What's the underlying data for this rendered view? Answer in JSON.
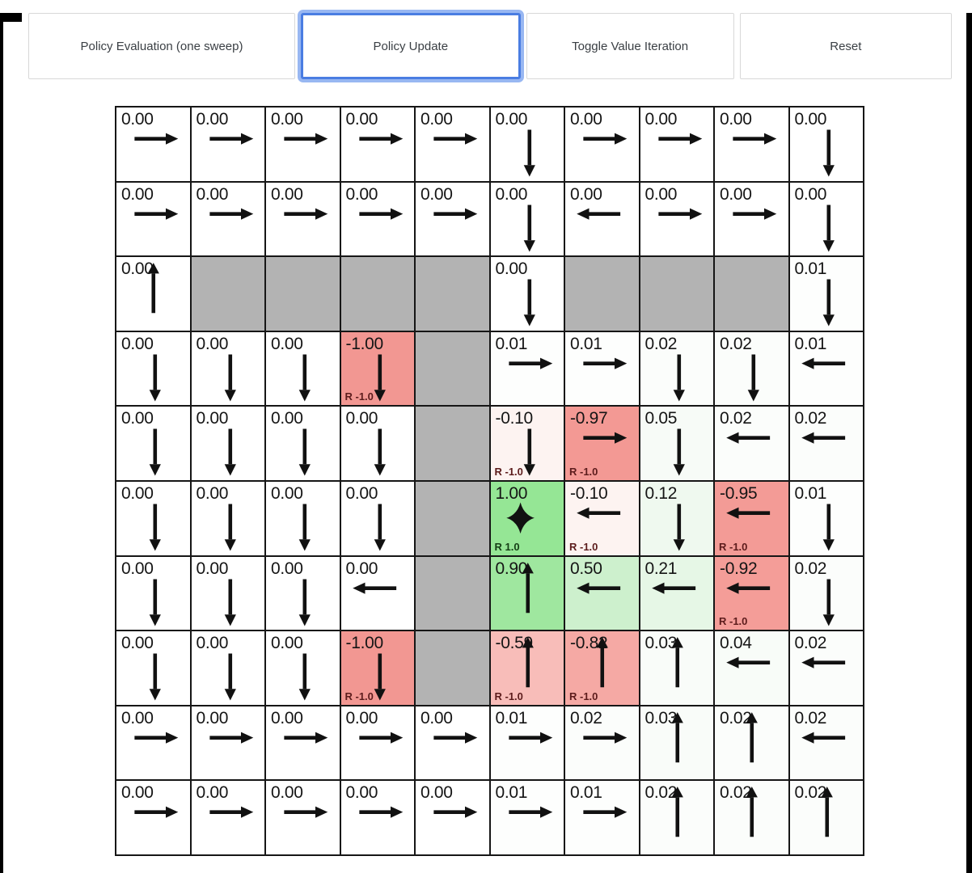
{
  "toolbar": {
    "buttons": [
      {
        "label": "Policy Evaluation (one sweep)",
        "active": false
      },
      {
        "label": "Policy Update",
        "active": true
      },
      {
        "label": "Toggle Value Iteration",
        "active": false
      },
      {
        "label": "Reset",
        "active": false
      }
    ],
    "active_border_color": "#4a7de2",
    "active_glow_color": "#98b7f2"
  },
  "colors": {
    "wall": "#b3b3b3",
    "goal_green": "#95e695",
    "penalty_red": "#f29792",
    "grid_line": "#161616"
  },
  "grid": {
    "rows_count": 10,
    "cols_count": 10,
    "rows": [
      [
        {
          "v": "0.00",
          "a": "right",
          "bg": "#ffffff"
        },
        {
          "v": "0.00",
          "a": "right",
          "bg": "#ffffff"
        },
        {
          "v": "0.00",
          "a": "right",
          "bg": "#ffffff"
        },
        {
          "v": "0.00",
          "a": "right",
          "bg": "#ffffff"
        },
        {
          "v": "0.00",
          "a": "right",
          "bg": "#ffffff"
        },
        {
          "v": "0.00",
          "a": "down",
          "bg": "#ffffff"
        },
        {
          "v": "0.00",
          "a": "right",
          "bg": "#ffffff"
        },
        {
          "v": "0.00",
          "a": "right",
          "bg": "#ffffff"
        },
        {
          "v": "0.00",
          "a": "right",
          "bg": "#ffffff"
        },
        {
          "v": "0.00",
          "a": "down",
          "bg": "#ffffff"
        }
      ],
      [
        {
          "v": "0.00",
          "a": "right",
          "bg": "#ffffff"
        },
        {
          "v": "0.00",
          "a": "right",
          "bg": "#ffffff"
        },
        {
          "v": "0.00",
          "a": "right",
          "bg": "#ffffff"
        },
        {
          "v": "0.00",
          "a": "right",
          "bg": "#ffffff"
        },
        {
          "v": "0.00",
          "a": "right",
          "bg": "#ffffff"
        },
        {
          "v": "0.00",
          "a": "down",
          "bg": "#ffffff"
        },
        {
          "v": "0.00",
          "a": "left",
          "bg": "#ffffff"
        },
        {
          "v": "0.00",
          "a": "right",
          "bg": "#ffffff"
        },
        {
          "v": "0.00",
          "a": "right",
          "bg": "#ffffff"
        },
        {
          "v": "0.00",
          "a": "down",
          "bg": "#ffffff"
        }
      ],
      [
        {
          "v": "0.00",
          "a": "up",
          "bg": "#ffffff"
        },
        {
          "wall": true,
          "bg": "#b3b3b3"
        },
        {
          "wall": true,
          "bg": "#b3b3b3"
        },
        {
          "wall": true,
          "bg": "#b3b3b3"
        },
        {
          "wall": true,
          "bg": "#b3b3b3"
        },
        {
          "v": "0.00",
          "a": "down",
          "bg": "#ffffff"
        },
        {
          "wall": true,
          "bg": "#b3b3b3"
        },
        {
          "wall": true,
          "bg": "#b3b3b3"
        },
        {
          "wall": true,
          "bg": "#b3b3b3"
        },
        {
          "v": "0.01",
          "a": "down",
          "bg": "#fdfefd"
        }
      ],
      [
        {
          "v": "0.00",
          "a": "down",
          "bg": "#ffffff"
        },
        {
          "v": "0.00",
          "a": "down",
          "bg": "#ffffff"
        },
        {
          "v": "0.00",
          "a": "down",
          "bg": "#ffffff"
        },
        {
          "v": "-1.00",
          "a": "down",
          "bg": "#f29792",
          "r": "R -1.0"
        },
        {
          "wall": true,
          "bg": "#b3b3b3"
        },
        {
          "v": "0.01",
          "a": "right",
          "bg": "#fdfefd"
        },
        {
          "v": "0.01",
          "a": "right",
          "bg": "#fdfefd"
        },
        {
          "v": "0.02",
          "a": "down",
          "bg": "#fbfdfb"
        },
        {
          "v": "0.02",
          "a": "down",
          "bg": "#fbfdfb"
        },
        {
          "v": "0.01",
          "a": "left",
          "bg": "#fdfefd"
        }
      ],
      [
        {
          "v": "0.00",
          "a": "down",
          "bg": "#ffffff"
        },
        {
          "v": "0.00",
          "a": "down",
          "bg": "#ffffff"
        },
        {
          "v": "0.00",
          "a": "down",
          "bg": "#ffffff"
        },
        {
          "v": "0.00",
          "a": "down",
          "bg": "#ffffff"
        },
        {
          "wall": true,
          "bg": "#b3b3b3"
        },
        {
          "v": "-0.10",
          "a": "down",
          "bg": "#fdf3f1",
          "r": "R -1.0"
        },
        {
          "v": "-0.97",
          "a": "right",
          "bg": "#f39994",
          "r": "R -1.0"
        },
        {
          "v": "0.05",
          "a": "down",
          "bg": "#f7fbf7"
        },
        {
          "v": "0.02",
          "a": "left",
          "bg": "#fbfdfb"
        },
        {
          "v": "0.02",
          "a": "left",
          "bg": "#fbfdfb"
        }
      ],
      [
        {
          "v": "0.00",
          "a": "down",
          "bg": "#ffffff"
        },
        {
          "v": "0.00",
          "a": "down",
          "bg": "#ffffff"
        },
        {
          "v": "0.00",
          "a": "down",
          "bg": "#ffffff"
        },
        {
          "v": "0.00",
          "a": "down",
          "bg": "#ffffff"
        },
        {
          "wall": true,
          "bg": "#b3b3b3"
        },
        {
          "v": "1.00",
          "a": "star",
          "bg": "#95e695",
          "r": "R 1.0"
        },
        {
          "v": "-0.10",
          "a": "left",
          "bg": "#fdf3f1",
          "r": "R -1.0"
        },
        {
          "v": "0.12",
          "a": "down",
          "bg": "#eff9ef"
        },
        {
          "v": "-0.95",
          "a": "left",
          "bg": "#f39b96",
          "r": "R -1.0"
        },
        {
          "v": "0.01",
          "a": "down",
          "bg": "#fdfefd"
        }
      ],
      [
        {
          "v": "0.00",
          "a": "down",
          "bg": "#ffffff"
        },
        {
          "v": "0.00",
          "a": "down",
          "bg": "#ffffff"
        },
        {
          "v": "0.00",
          "a": "down",
          "bg": "#ffffff"
        },
        {
          "v": "0.00",
          "a": "left",
          "bg": "#ffffff"
        },
        {
          "wall": true,
          "bg": "#b3b3b3"
        },
        {
          "v": "0.90",
          "a": "up",
          "bg": "#9fe79f"
        },
        {
          "v": "0.50",
          "a": "left",
          "bg": "#cdf0cd"
        },
        {
          "v": "0.21",
          "a": "left",
          "bg": "#e6f7e6"
        },
        {
          "v": "-0.92",
          "a": "left",
          "bg": "#f49d98",
          "r": "R -1.0"
        },
        {
          "v": "0.02",
          "a": "down",
          "bg": "#fbfdfb"
        }
      ],
      [
        {
          "v": "0.00",
          "a": "down",
          "bg": "#ffffff"
        },
        {
          "v": "0.00",
          "a": "down",
          "bg": "#ffffff"
        },
        {
          "v": "0.00",
          "a": "down",
          "bg": "#ffffff"
        },
        {
          "v": "-1.00",
          "a": "down",
          "bg": "#f29792",
          "r": "R -1.0"
        },
        {
          "wall": true,
          "bg": "#b3b3b3"
        },
        {
          "v": "-0.59",
          "a": "up",
          "bg": "#f8bdb9",
          "r": "R -1.0"
        },
        {
          "v": "-0.82",
          "a": "up",
          "bg": "#f5a9a4",
          "r": "R -1.0"
        },
        {
          "v": "0.03",
          "a": "up",
          "bg": "#f9fcf9"
        },
        {
          "v": "0.04",
          "a": "left",
          "bg": "#f8fcf8"
        },
        {
          "v": "0.02",
          "a": "left",
          "bg": "#fbfdfb"
        }
      ],
      [
        {
          "v": "0.00",
          "a": "right",
          "bg": "#ffffff"
        },
        {
          "v": "0.00",
          "a": "right",
          "bg": "#ffffff"
        },
        {
          "v": "0.00",
          "a": "right",
          "bg": "#ffffff"
        },
        {
          "v": "0.00",
          "a": "right",
          "bg": "#ffffff"
        },
        {
          "v": "0.00",
          "a": "right",
          "bg": "#ffffff"
        },
        {
          "v": "0.01",
          "a": "right",
          "bg": "#fdfefd"
        },
        {
          "v": "0.02",
          "a": "right",
          "bg": "#fbfdfb"
        },
        {
          "v": "0.03",
          "a": "up",
          "bg": "#f9fcf9"
        },
        {
          "v": "0.02",
          "a": "up",
          "bg": "#fbfdfb"
        },
        {
          "v": "0.02",
          "a": "left",
          "bg": "#fbfdfb"
        }
      ],
      [
        {
          "v": "0.00",
          "a": "right",
          "bg": "#ffffff"
        },
        {
          "v": "0.00",
          "a": "right",
          "bg": "#ffffff"
        },
        {
          "v": "0.00",
          "a": "right",
          "bg": "#ffffff"
        },
        {
          "v": "0.00",
          "a": "right",
          "bg": "#ffffff"
        },
        {
          "v": "0.00",
          "a": "right",
          "bg": "#ffffff"
        },
        {
          "v": "0.01",
          "a": "right",
          "bg": "#fdfefd"
        },
        {
          "v": "0.01",
          "a": "right",
          "bg": "#fdfefd"
        },
        {
          "v": "0.02",
          "a": "up",
          "bg": "#fbfdfb"
        },
        {
          "v": "0.02",
          "a": "up",
          "bg": "#fbfdfb"
        },
        {
          "v": "0.02",
          "a": "up",
          "bg": "#fbfdfb"
        }
      ]
    ]
  }
}
